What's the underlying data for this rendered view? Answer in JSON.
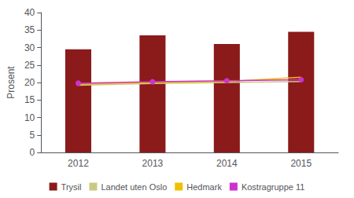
{
  "chart_data": {
    "type": "bar",
    "categories": [
      "2012",
      "2013",
      "2014",
      "2015"
    ],
    "ylabel": "Prosent",
    "ylim": [
      0,
      40
    ],
    "yticks": [
      0,
      5,
      10,
      15,
      20,
      25,
      30,
      35,
      40
    ],
    "grid": false,
    "legend": "bottom",
    "series": [
      {
        "name": "Trysil",
        "type": "bar",
        "color": "#8B1A1A",
        "values": [
          29.5,
          33.5,
          31.0,
          34.5
        ]
      },
      {
        "name": "Landet uten Oslo",
        "type": "line",
        "marker": "none",
        "color": "#C8CA82",
        "values": [
          19.2,
          19.7,
          20.0,
          20.3
        ]
      },
      {
        "name": "Hedmark",
        "type": "line",
        "marker": "none",
        "color": "#F0C000",
        "values": [
          19.5,
          20.0,
          20.3,
          21.5
        ]
      },
      {
        "name": "Kostragruppe 11",
        "type": "line",
        "marker": "circle",
        "color": "#CC33CC",
        "values": [
          19.8,
          20.2,
          20.5,
          20.8
        ]
      }
    ]
  }
}
